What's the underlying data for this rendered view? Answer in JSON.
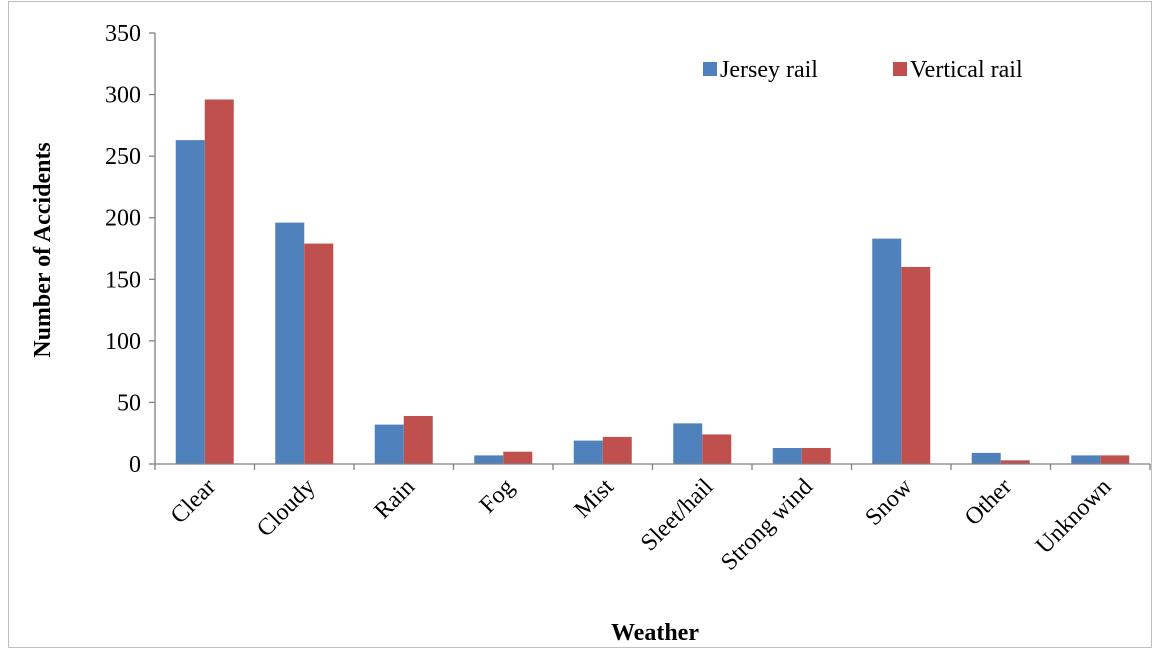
{
  "chart_data": {
    "type": "bar",
    "x_label": "Weather",
    "y_label": "Number of Accidents",
    "categories": [
      "Clear",
      "Cloudy",
      "Rain",
      "Fog",
      "Mist",
      "Sleet/hail",
      "Strong wind",
      "Snow",
      "Other",
      "Unknown"
    ],
    "series": [
      {
        "name": "Jersey rail",
        "color": "#4f81bd",
        "values": [
          263,
          196,
          32,
          7,
          19,
          33,
          13,
          183,
          9,
          7
        ]
      },
      {
        "name": "Vertical rail",
        "color": "#c0504d",
        "values": [
          296,
          179,
          39,
          10,
          22,
          24,
          13,
          160,
          3,
          7
        ]
      }
    ],
    "ylim": [
      0,
      350
    ],
    "yticks": [
      0,
      50,
      100,
      150,
      200,
      250,
      300,
      350
    ],
    "grid": false,
    "legend": "top-right"
  }
}
